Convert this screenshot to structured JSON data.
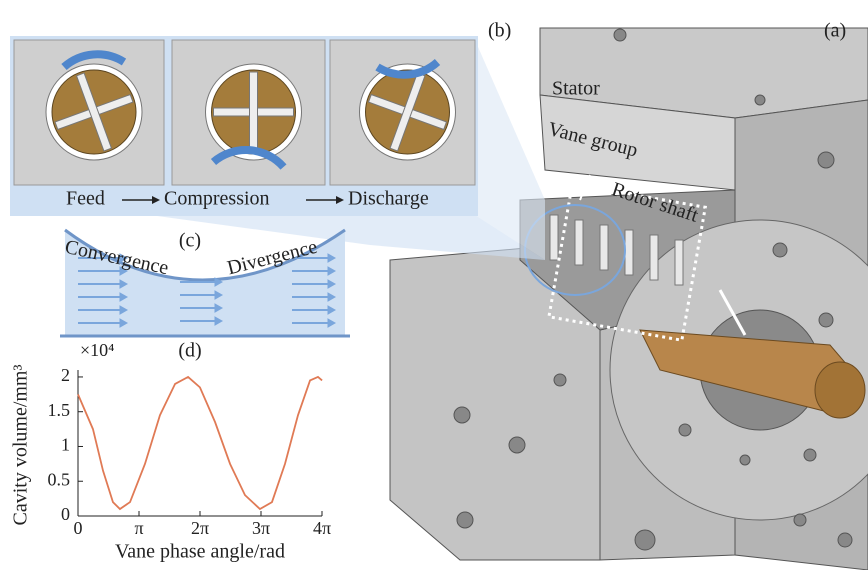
{
  "panel_labels": {
    "a": "(a)",
    "b": "(b)",
    "c": "(c)",
    "d": "(d)"
  },
  "machine_labels": {
    "stator": "Stator",
    "vane_group": "Vane group",
    "rotor_shaft": "Rotor shaft"
  },
  "process": {
    "steps": [
      "Feed",
      "Compression",
      "Discharge"
    ]
  },
  "flow": {
    "convergence": "Convergence",
    "divergence": "Divergence"
  },
  "chart_data": {
    "type": "line",
    "x_label": "Vane phase angle/rad",
    "y_label": "Cavity volume/mm³",
    "y_multiplier": "×10⁴",
    "x": [
      0,
      0.77,
      1.29,
      1.8,
      2.16,
      2.68,
      3.45,
      4.22,
      5.0,
      5.67,
      6.28,
      7.06,
      7.83,
      8.6,
      9.37,
      9.99,
      10.66,
      11.33,
      11.95,
      12.36,
      12.57
    ],
    "values": [
      1.75,
      1.25,
      0.65,
      0.2,
      0.1,
      0.2,
      0.75,
      1.45,
      1.9,
      2.0,
      1.85,
      1.35,
      0.75,
      0.3,
      0.1,
      0.2,
      0.75,
      1.45,
      1.95,
      2.0,
      1.95
    ],
    "color": "#e07a55",
    "xlim": [
      0,
      12.566
    ],
    "ylim": [
      0,
      2.1
    ],
    "xticks": [
      0,
      {
        "value": 3.1416,
        "label": "π"
      },
      {
        "value": 6.2832,
        "label": "2π"
      },
      {
        "value": 9.4248,
        "label": "3π"
      },
      {
        "value": 12.566,
        "label": "4π"
      }
    ],
    "yticks": [
      0,
      0.5,
      1,
      1.5,
      2
    ]
  }
}
